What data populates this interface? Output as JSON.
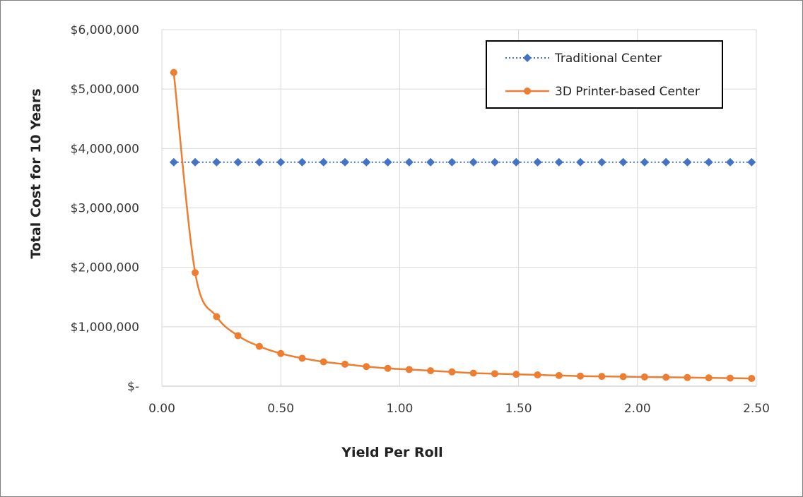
{
  "chart_data": {
    "type": "line",
    "title": "",
    "xlabel": "Yield Per Roll",
    "ylabel": "Total Cost for 10 Years",
    "xlim": [
      0,
      2.5
    ],
    "ylim": [
      0,
      6000000
    ],
    "x_ticks": [
      "0.00",
      "0.50",
      "1.00",
      "1.50",
      "2.00",
      "2.50"
    ],
    "x_tick_values": [
      0,
      0.5,
      1.0,
      1.5,
      2.0,
      2.5
    ],
    "y_ticks": [
      "$-",
      "$1,000,000",
      "$2,000,000",
      "$3,000,000",
      "$4,000,000",
      "$5,000,000",
      "$6,000,000"
    ],
    "y_tick_values": [
      0,
      1000000,
      2000000,
      3000000,
      4000000,
      5000000,
      6000000
    ],
    "grid": true,
    "legend_position": "top-right",
    "x": [
      0.05,
      0.14,
      0.23,
      0.32,
      0.41,
      0.5,
      0.59,
      0.68,
      0.77,
      0.86,
      0.95,
      1.04,
      1.13,
      1.22,
      1.31,
      1.4,
      1.49,
      1.58,
      1.67,
      1.76,
      1.85,
      1.94,
      2.03,
      2.12,
      2.21,
      2.3,
      2.39,
      2.48
    ],
    "series": [
      {
        "name": "Traditional Center",
        "color": "#4472c4",
        "marker": "diamond",
        "line_style": "dotted",
        "values": [
          3770000,
          3770000,
          3770000,
          3770000,
          3770000,
          3770000,
          3770000,
          3770000,
          3770000,
          3770000,
          3770000,
          3770000,
          3770000,
          3770000,
          3770000,
          3770000,
          3770000,
          3770000,
          3770000,
          3770000,
          3770000,
          3770000,
          3770000,
          3770000,
          3770000,
          3770000,
          3770000,
          3770000
        ]
      },
      {
        "name": "3D Printer-based Center",
        "color": "#ed7d31",
        "marker": "circle",
        "line_style": "solid",
        "values": [
          5280000,
          1910000,
          1170000,
          850000,
          670000,
          550000,
          470000,
          410000,
          370000,
          330000,
          300000,
          280000,
          260000,
          240000,
          220000,
          210000,
          200000,
          190000,
          180000,
          170000,
          165000,
          160000,
          155000,
          150000,
          145000,
          140000,
          135000,
          130000
        ]
      }
    ]
  }
}
